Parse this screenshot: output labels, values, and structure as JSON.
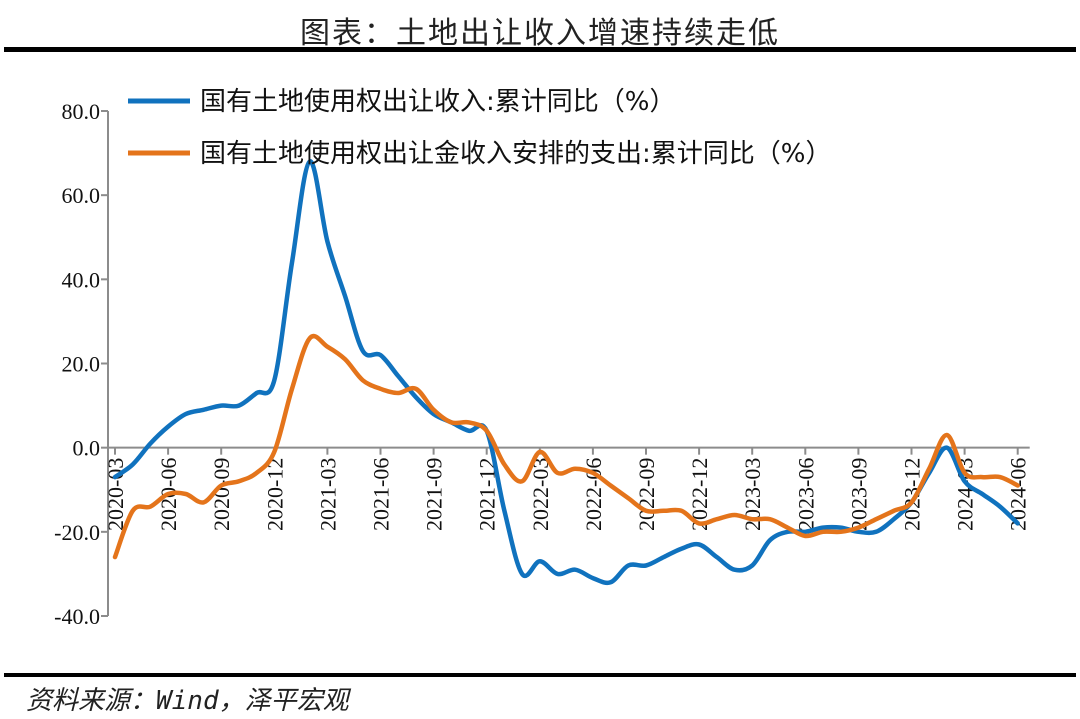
{
  "header": {
    "title": "图表：土地出让收入增速持续走低"
  },
  "footer": {
    "source": "资料来源：Wind，泽平宏观"
  },
  "colors": {
    "series_1": "#1072BE",
    "series_2": "#E4741B",
    "axis": "#8c8c8c"
  },
  "chart_data": {
    "type": "line",
    "title": "图表：土地出让收入增速持续走低",
    "xlabel": "",
    "ylabel": "",
    "ylim": [
      -40,
      80
    ],
    "yticks": [
      -40,
      -20,
      0,
      20,
      40,
      60,
      80
    ],
    "ytick_labels": [
      "-40.0",
      "-20.0",
      "0.0",
      "20.0",
      "40.0",
      "60.0",
      "80.0"
    ],
    "xtick_labels": [
      "2020-03",
      "2020-06",
      "2020-09",
      "2020-12",
      "2021-03",
      "2021-06",
      "2021-09",
      "2021-12",
      "2022-03",
      "2022-06",
      "2022-09",
      "2022-12",
      "2023-03",
      "2023-06",
      "2023-09",
      "2023-12",
      "2024-03",
      "2024-06"
    ],
    "grid": false,
    "legend_position": "top-left inside",
    "x": [
      "2020-03",
      "2020-04",
      "2020-05",
      "2020-06",
      "2020-07",
      "2020-08",
      "2020-09",
      "2020-10",
      "2020-11",
      "2020-12",
      "2021-01",
      "2021-02",
      "2021-03",
      "2021-04",
      "2021-05",
      "2021-06",
      "2021-07",
      "2021-08",
      "2021-09",
      "2021-10",
      "2021-11",
      "2021-12",
      "2022-01",
      "2022-02",
      "2022-03",
      "2022-04",
      "2022-05",
      "2022-06",
      "2022-07",
      "2022-08",
      "2022-09",
      "2022-10",
      "2022-11",
      "2022-12",
      "2023-01",
      "2023-02",
      "2023-03",
      "2023-04",
      "2023-05",
      "2023-06",
      "2023-07",
      "2023-08",
      "2023-09",
      "2023-10",
      "2023-11",
      "2023-12",
      "2024-01",
      "2024-02",
      "2024-03",
      "2024-04",
      "2024-05",
      "2024-06"
    ],
    "series": [
      {
        "name": "国有土地使用权出让收入:累计同比（%）",
        "color": "#1072BE",
        "values": [
          -7,
          -4,
          1,
          5,
          8,
          9,
          10,
          10,
          13,
          16,
          44,
          68,
          49,
          36,
          23,
          22,
          17,
          12,
          8,
          6,
          4,
          4,
          -15,
          -30,
          -27,
          -30,
          -29,
          -31,
          -32,
          -28,
          -28,
          -26,
          -24,
          -23,
          -26,
          -29,
          -28,
          -22,
          -20,
          -20,
          -19,
          -19,
          -20,
          -20,
          -17,
          -13,
          -6,
          0,
          -8,
          -11,
          -14,
          -18
        ]
      },
      {
        "name": "国有土地使用权出让金收入安排的支出:累计同比（%）",
        "color": "#E4741B",
        "values": [
          -26,
          -15,
          -14,
          -11,
          -11,
          -13,
          -9,
          -8,
          -6,
          -1,
          14,
          26,
          24,
          21,
          16,
          14,
          13,
          14,
          9,
          6,
          6,
          4,
          -4,
          -8,
          -1,
          -6,
          -5,
          -6,
          -9,
          -12,
          -15,
          -15,
          -15,
          -18,
          -17,
          -16,
          -17,
          -17,
          -19,
          -21,
          -20,
          -20,
          -19,
          -17,
          -15,
          -13,
          -5,
          3,
          -6,
          -7,
          -7,
          -9
        ]
      }
    ]
  }
}
